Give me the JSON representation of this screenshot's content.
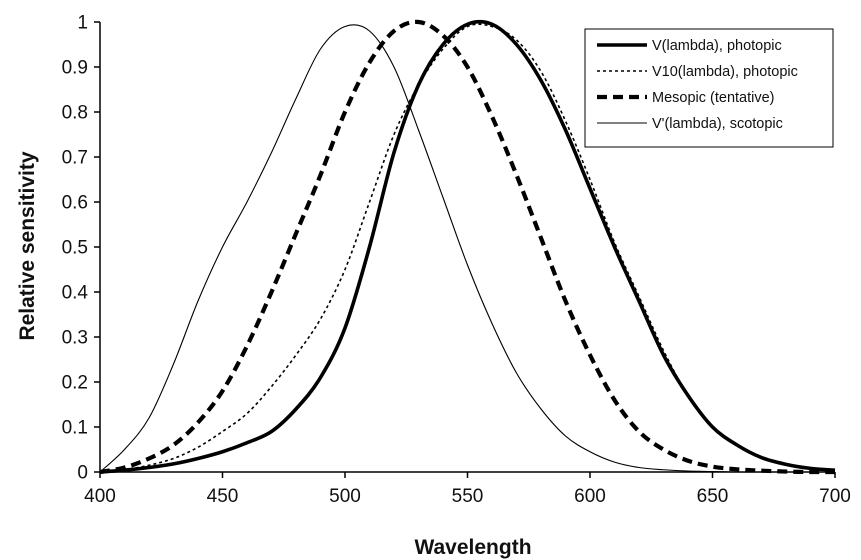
{
  "chart_data": {
    "type": "line",
    "title": "",
    "xlabel": "Wavelength",
    "ylabel": "Relative sensitivity",
    "xlim": [
      400,
      700
    ],
    "ylim": [
      0,
      1
    ],
    "x_ticks": [
      400,
      450,
      500,
      550,
      600,
      650,
      700
    ],
    "y_ticks": [
      0,
      0.1,
      0.2,
      0.3,
      0.4,
      0.5,
      0.6,
      0.7,
      0.8,
      0.9,
      1
    ],
    "y_tick_labels": [
      "0",
      "0.1",
      "0.2",
      "0.3",
      "0.4",
      "0.5",
      "0.6",
      "0.7",
      "0.8",
      "0.9",
      "1"
    ],
    "grid": false,
    "legend_position": "top-right",
    "x": [
      400,
      410,
      420,
      430,
      440,
      450,
      460,
      470,
      480,
      490,
      500,
      510,
      520,
      530,
      540,
      550,
      560,
      570,
      580,
      590,
      600,
      610,
      620,
      630,
      640,
      650,
      660,
      670,
      680,
      690,
      700
    ],
    "series": [
      {
        "name": "V(lambda), photopic",
        "style": "thick-solid",
        "color": "#000000",
        "values": [
          0.0,
          0.004,
          0.01,
          0.018,
          0.03,
          0.045,
          0.065,
          0.09,
          0.14,
          0.21,
          0.32,
          0.5,
          0.71,
          0.86,
          0.95,
          0.995,
          0.995,
          0.95,
          0.87,
          0.76,
          0.63,
          0.5,
          0.38,
          0.26,
          0.17,
          0.1,
          0.06,
          0.032,
          0.017,
          0.008,
          0.004
        ]
      },
      {
        "name": "V10(lambda), photopic",
        "style": "dotted",
        "color": "#000000",
        "values": [
          0.0,
          0.005,
          0.015,
          0.03,
          0.055,
          0.09,
          0.13,
          0.19,
          0.26,
          0.34,
          0.45,
          0.6,
          0.75,
          0.86,
          0.94,
          0.99,
          0.99,
          0.96,
          0.89,
          0.78,
          0.65,
          0.51,
          0.39,
          0.27,
          0.17,
          0.1,
          0.06,
          0.032,
          0.017,
          0.008,
          0.004
        ]
      },
      {
        "name": "Mesopic (tentative)",
        "style": "thick-dashed",
        "color": "#000000",
        "values": [
          0.0,
          0.01,
          0.03,
          0.06,
          0.11,
          0.18,
          0.28,
          0.4,
          0.53,
          0.66,
          0.8,
          0.91,
          0.98,
          1.0,
          0.97,
          0.9,
          0.79,
          0.66,
          0.52,
          0.38,
          0.26,
          0.16,
          0.09,
          0.05,
          0.025,
          0.012,
          0.006,
          0.003,
          0.001,
          0.0,
          0.0
        ]
      },
      {
        "name": "V'(lambda), scotopic",
        "style": "thin-solid",
        "color": "#000000",
        "values": [
          0.0,
          0.05,
          0.12,
          0.24,
          0.38,
          0.5,
          0.6,
          0.71,
          0.83,
          0.94,
          0.99,
          0.98,
          0.9,
          0.76,
          0.61,
          0.46,
          0.33,
          0.22,
          0.14,
          0.08,
          0.045,
          0.022,
          0.01,
          0.005,
          0.002,
          0.001,
          0.0,
          0.0,
          0.0,
          0.0,
          0.0
        ]
      }
    ]
  }
}
